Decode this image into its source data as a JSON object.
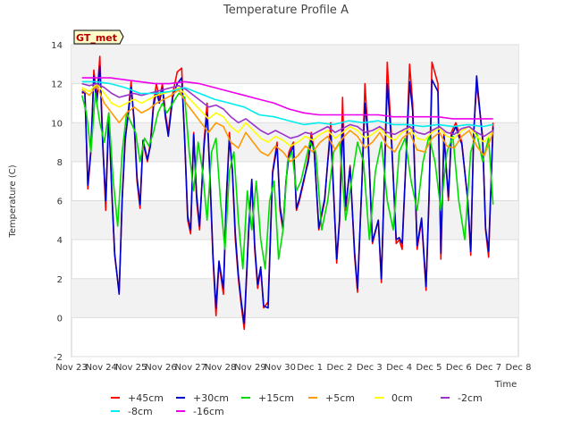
{
  "chart_data": {
    "type": "line",
    "title": "Temperature Profile A",
    "xlabel": "Time",
    "ylabel": "Temperature (C)",
    "badge": "GT_met",
    "xlim": [
      0,
      15
    ],
    "ylim": [
      -2,
      14
    ],
    "x_ticks": [
      {
        "x": 0,
        "label": "Nov 23"
      },
      {
        "x": 1,
        "label": "Nov 24"
      },
      {
        "x": 2,
        "label": "Nov 25"
      },
      {
        "x": 3,
        "label": "Nov 26"
      },
      {
        "x": 4,
        "label": "Nov 27"
      },
      {
        "x": 5,
        "label": "Nov 28"
      },
      {
        "x": 6,
        "label": "Nov 29"
      },
      {
        "x": 7,
        "label": "Nov 30"
      },
      {
        "x": 8,
        "label": "Dec 1"
      },
      {
        "x": 9,
        "label": "Dec 2"
      },
      {
        "x": 10,
        "label": "Dec 3"
      },
      {
        "x": 11,
        "label": "Dec 4"
      },
      {
        "x": 12,
        "label": "Dec 5"
      },
      {
        "x": 13,
        "label": "Dec 6"
      },
      {
        "x": 14,
        "label": "Dec 7"
      },
      {
        "x": 15,
        "label": "Dec 8"
      }
    ],
    "y_ticks": [
      -2,
      0,
      2,
      4,
      6,
      8,
      10,
      12,
      14
    ],
    "grid": true,
    "legend_position": "bottom",
    "series": [
      {
        "name": "+45cm",
        "color": "#ff0000",
        "x": [
          0.35,
          0.45,
          0.55,
          0.65,
          0.75,
          0.85,
          0.95,
          1.05,
          1.15,
          1.25,
          1.35,
          1.45,
          1.6,
          1.7,
          1.8,
          1.9,
          2.0,
          2.1,
          2.2,
          2.3,
          2.4,
          2.55,
          2.65,
          2.75,
          2.85,
          2.95,
          3.05,
          3.15,
          3.25,
          3.4,
          3.55,
          3.7,
          3.8,
          3.9,
          4.0,
          4.1,
          4.2,
          4.3,
          4.45,
          4.55,
          4.65,
          4.75,
          4.85,
          4.95,
          5.1,
          5.2,
          5.3,
          5.4,
          5.5,
          5.6,
          5.7,
          5.8,
          5.95,
          6.05,
          6.15,
          6.25,
          6.35,
          6.45,
          6.6,
          6.75,
          6.9,
          7.0,
          7.1,
          7.2,
          7.3,
          7.45,
          7.55,
          7.65,
          7.8,
          7.95,
          8.05,
          8.15,
          8.3,
          8.5,
          8.6,
          8.7,
          8.9,
          9.0,
          9.1,
          9.2,
          9.35,
          9.5,
          9.6,
          9.75,
          9.85,
          9.95,
          10.1,
          10.3,
          10.4,
          10.5,
          10.6,
          10.75,
          10.9,
          11.0,
          11.1,
          11.25,
          11.35,
          11.45,
          11.6,
          11.75,
          11.9,
          12.0,
          12.1,
          12.3,
          12.4,
          12.5,
          12.65,
          12.75,
          12.9,
          13.0,
          13.1,
          13.3,
          13.4,
          13.5,
          13.6,
          13.8,
          13.9,
          14.0,
          14.15
        ],
        "y": [
          11.5,
          11.6,
          6.6,
          8.5,
          12.7,
          11.2,
          13.4,
          9.0,
          5.5,
          10.5,
          6.5,
          3.2,
          1.3,
          6.0,
          9.0,
          10.5,
          12.1,
          10.0,
          7.0,
          5.6,
          9.0,
          8.0,
          9.0,
          11.0,
          12.0,
          11.2,
          12.0,
          10.5,
          9.5,
          11.5,
          12.6,
          12.8,
          9.0,
          5.0,
          4.3,
          9.5,
          6.0,
          4.5,
          9.0,
          11.0,
          7.0,
          3.0,
          0.1,
          2.8,
          1.2,
          6.0,
          9.5,
          7.5,
          4.0,
          2.0,
          0.6,
          -0.6,
          4.5,
          7.0,
          3.5,
          1.5,
          2.5,
          0.5,
          0.8,
          7.5,
          9.0,
          5.5,
          4.5,
          7.0,
          8.5,
          9.0,
          5.5,
          6.0,
          7.0,
          8.2,
          9.5,
          8.5,
          4.5,
          6.0,
          8.0,
          10.0,
          2.8,
          5.0,
          11.3,
          5.5,
          7.8,
          3.2,
          1.3,
          7.0,
          12.0,
          9.5,
          3.8,
          5.0,
          1.8,
          7.0,
          13.1,
          9.0,
          3.8,
          4.0,
          3.5,
          9.0,
          13.0,
          11.0,
          3.5,
          5.0,
          1.4,
          6.0,
          13.1,
          12.0,
          3.0,
          9.5,
          6.0,
          9.5,
          10.0,
          9.5,
          9.0,
          6.0,
          3.2,
          9.5,
          12.0,
          9.3,
          4.5,
          3.1,
          10.0
        ]
      },
      {
        "name": "+30cm",
        "color": "#0000cc",
        "x": [
          0.35,
          0.45,
          0.55,
          0.65,
          0.75,
          0.85,
          0.95,
          1.05,
          1.15,
          1.25,
          1.35,
          1.45,
          1.6,
          1.7,
          1.8,
          1.9,
          2.0,
          2.1,
          2.2,
          2.3,
          2.4,
          2.55,
          2.65,
          2.75,
          2.85,
          2.95,
          3.05,
          3.15,
          3.25,
          3.4,
          3.55,
          3.7,
          3.8,
          3.9,
          4.0,
          4.1,
          4.2,
          4.3,
          4.45,
          4.55,
          4.65,
          4.75,
          4.85,
          4.95,
          5.1,
          5.2,
          5.3,
          5.4,
          5.5,
          5.6,
          5.7,
          5.8,
          5.95,
          6.05,
          6.15,
          6.25,
          6.35,
          6.45,
          6.6,
          6.75,
          6.9,
          7.0,
          7.1,
          7.2,
          7.3,
          7.45,
          7.55,
          7.65,
          7.8,
          7.95,
          8.05,
          8.15,
          8.3,
          8.5,
          8.6,
          8.7,
          8.9,
          9.0,
          9.1,
          9.2,
          9.35,
          9.5,
          9.6,
          9.75,
          9.85,
          9.95,
          10.1,
          10.3,
          10.4,
          10.5,
          10.6,
          10.75,
          10.9,
          11.0,
          11.1,
          11.25,
          11.35,
          11.45,
          11.6,
          11.75,
          11.9,
          12.0,
          12.1,
          12.3,
          12.4,
          12.5,
          12.65,
          12.75,
          12.9,
          13.0,
          13.1,
          13.3,
          13.4,
          13.5,
          13.6,
          13.8,
          13.9,
          14.0,
          14.15
        ],
        "y": [
          11.6,
          11.5,
          6.8,
          8.6,
          12.4,
          11.0,
          12.9,
          8.8,
          6.0,
          10.4,
          6.6,
          3.3,
          1.2,
          6.1,
          9.2,
          10.3,
          11.8,
          10.2,
          7.2,
          5.8,
          9.1,
          8.1,
          8.8,
          10.8,
          11.6,
          11.0,
          11.8,
          10.3,
          9.3,
          11.3,
          12.0,
          12.3,
          9.1,
          5.2,
          4.5,
          9.4,
          6.3,
          4.7,
          8.8,
          10.5,
          7.2,
          3.2,
          0.5,
          2.9,
          1.5,
          6.3,
          9.2,
          7.6,
          4.3,
          2.2,
          0.8,
          -0.3,
          4.6,
          7.1,
          3.7,
          1.7,
          2.6,
          0.6,
          0.5,
          7.4,
          8.8,
          5.7,
          4.6,
          7.0,
          8.3,
          8.8,
          5.6,
          6.1,
          7.1,
          8.0,
          9.2,
          8.4,
          4.6,
          6.1,
          8.0,
          9.5,
          3.0,
          5.1,
          10.0,
          5.7,
          7.7,
          3.4,
          1.5,
          7.0,
          11.0,
          9.3,
          3.9,
          5.0,
          2.0,
          7.0,
          12.0,
          8.8,
          4.0,
          4.1,
          3.8,
          8.8,
          12.1,
          10.6,
          3.7,
          5.1,
          1.6,
          6.2,
          12.2,
          11.6,
          3.3,
          9.3,
          6.2,
          9.3,
          9.8,
          9.3,
          8.9,
          6.1,
          3.4,
          9.4,
          12.4,
          9.1,
          4.6,
          3.4,
          9.8
        ]
      },
      {
        "name": "+15cm",
        "color": "#00dd00",
        "x": [
          0.35,
          0.5,
          0.65,
          0.8,
          0.95,
          1.1,
          1.25,
          1.4,
          1.55,
          1.7,
          1.85,
          2.0,
          2.15,
          2.3,
          2.45,
          2.6,
          2.75,
          2.9,
          3.05,
          3.2,
          3.4,
          3.6,
          3.8,
          3.95,
          4.1,
          4.25,
          4.4,
          4.55,
          4.7,
          4.85,
          5.0,
          5.15,
          5.3,
          5.45,
          5.6,
          5.75,
          5.9,
          6.05,
          6.2,
          6.35,
          6.5,
          6.65,
          6.8,
          6.95,
          7.1,
          7.25,
          7.4,
          7.55,
          7.7,
          7.85,
          8.0,
          8.2,
          8.4,
          8.6,
          8.8,
          9.0,
          9.2,
          9.4,
          9.6,
          9.8,
          10.0,
          10.2,
          10.4,
          10.6,
          10.8,
          11.0,
          11.2,
          11.4,
          11.6,
          11.8,
          12.0,
          12.2,
          12.4,
          12.6,
          12.8,
          13.0,
          13.2,
          13.4,
          13.6,
          13.8,
          14.0,
          14.15
        ],
        "y": [
          11.4,
          10.5,
          8.5,
          11.5,
          10.0,
          9.0,
          10.5,
          7.0,
          4.7,
          8.5,
          10.5,
          10.0,
          9.5,
          8.0,
          9.2,
          8.8,
          9.5,
          10.5,
          11.0,
          10.5,
          11.0,
          11.5,
          11.3,
          8.5,
          6.5,
          9.0,
          7.5,
          5.0,
          8.5,
          9.2,
          6.0,
          3.5,
          7.5,
          8.5,
          5.0,
          2.5,
          6.5,
          4.5,
          7.0,
          4.0,
          2.5,
          6.0,
          7.0,
          3.0,
          4.5,
          8.0,
          8.5,
          6.5,
          7.0,
          8.0,
          9.0,
          8.5,
          4.5,
          6.0,
          8.5,
          9.0,
          5.0,
          7.0,
          9.0,
          8.0,
          4.0,
          7.5,
          9.0,
          6.0,
          4.5,
          8.5,
          9.2,
          7.0,
          5.5,
          8.0,
          9.3,
          8.0,
          5.5,
          8.5,
          9.3,
          6.0,
          4.0,
          8.5,
          9.5,
          8.0,
          9.2,
          5.8
        ]
      },
      {
        "name": "+5cm",
        "color": "#ff9900",
        "x": [
          0.35,
          0.6,
          0.85,
          1.1,
          1.35,
          1.6,
          1.85,
          2.1,
          2.35,
          2.6,
          2.85,
          3.1,
          3.35,
          3.6,
          3.85,
          4.1,
          4.35,
          4.6,
          4.85,
          5.1,
          5.35,
          5.6,
          5.85,
          6.1,
          6.35,
          6.6,
          6.85,
          7.1,
          7.35,
          7.6,
          7.85,
          8.1,
          8.35,
          8.6,
          8.85,
          9.1,
          9.35,
          9.6,
          9.85,
          10.1,
          10.35,
          10.6,
          10.85,
          11.1,
          11.35,
          11.6,
          11.85,
          12.1,
          12.35,
          12.6,
          12.85,
          13.1,
          13.35,
          13.6,
          13.85,
          14.15
        ],
        "y": [
          11.7,
          11.4,
          11.9,
          11.0,
          10.5,
          10.0,
          10.5,
          10.8,
          10.5,
          10.7,
          11.0,
          11.2,
          11.4,
          11.7,
          11.0,
          10.5,
          10.0,
          9.5,
          10.0,
          9.8,
          9.0,
          8.7,
          9.5,
          9.0,
          8.5,
          8.3,
          8.8,
          8.5,
          8.0,
          8.3,
          8.8,
          8.5,
          9.0,
          9.3,
          8.6,
          9.2,
          9.6,
          9.3,
          8.7,
          9.0,
          9.5,
          8.8,
          8.5,
          9.2,
          9.5,
          8.6,
          8.5,
          9.2,
          9.5,
          8.8,
          8.7,
          9.3,
          9.6,
          8.8,
          8.3,
          9.5
        ]
      },
      {
        "name": "0cm",
        "color": "#ffff00",
        "x": [
          0.35,
          0.6,
          0.85,
          1.1,
          1.35,
          1.6,
          1.85,
          2.1,
          2.35,
          2.6,
          2.85,
          3.1,
          3.35,
          3.6,
          3.85,
          4.1,
          4.35,
          4.6,
          4.85,
          5.1,
          5.35,
          5.6,
          5.85,
          6.1,
          6.35,
          6.6,
          6.85,
          7.1,
          7.35,
          7.6,
          7.85,
          8.1,
          8.35,
          8.6,
          8.85,
          9.1,
          9.35,
          9.6,
          9.85,
          10.1,
          10.35,
          10.6,
          10.85,
          11.1,
          11.35,
          11.6,
          11.85,
          12.1,
          12.35,
          12.6,
          12.85,
          13.1,
          13.35,
          13.6,
          13.85,
          14.15
        ],
        "y": [
          11.8,
          11.6,
          12.0,
          11.5,
          11.0,
          10.8,
          11.0,
          11.2,
          11.0,
          11.2,
          11.4,
          11.5,
          11.6,
          11.8,
          11.4,
          11.0,
          10.6,
          10.2,
          10.5,
          10.3,
          9.8,
          9.5,
          10.0,
          9.6,
          9.2,
          9.0,
          9.3,
          9.1,
          8.8,
          9.0,
          9.3,
          9.1,
          9.4,
          9.6,
          9.2,
          9.5,
          9.8,
          9.6,
          9.2,
          9.4,
          9.7,
          9.3,
          9.1,
          9.5,
          9.7,
          9.2,
          9.1,
          9.5,
          9.7,
          9.3,
          9.2,
          9.6,
          9.8,
          9.3,
          9.0,
          9.6
        ]
      },
      {
        "name": "-2cm",
        "color": "#9933cc",
        "x": [
          0.35,
          0.6,
          0.85,
          1.1,
          1.35,
          1.6,
          1.85,
          2.1,
          2.35,
          2.6,
          2.85,
          3.1,
          3.35,
          3.6,
          3.85,
          4.1,
          4.35,
          4.6,
          4.85,
          5.1,
          5.35,
          5.6,
          5.85,
          6.1,
          6.35,
          6.6,
          6.85,
          7.1,
          7.35,
          7.6,
          7.85,
          8.1,
          8.35,
          8.6,
          8.85,
          9.1,
          9.35,
          9.6,
          9.85,
          10.1,
          10.35,
          10.6,
          10.85,
          11.1,
          11.35,
          11.6,
          11.85,
          12.1,
          12.35,
          12.6,
          12.85,
          13.1,
          13.35,
          13.6,
          13.85,
          14.15
        ],
        "y": [
          12.0,
          11.9,
          12.0,
          11.8,
          11.5,
          11.3,
          11.4,
          11.5,
          11.4,
          11.5,
          11.6,
          11.7,
          11.8,
          11.9,
          11.7,
          11.4,
          11.1,
          10.8,
          10.9,
          10.7,
          10.3,
          10.0,
          10.2,
          9.9,
          9.6,
          9.4,
          9.6,
          9.4,
          9.2,
          9.3,
          9.5,
          9.4,
          9.6,
          9.8,
          9.5,
          9.7,
          9.9,
          9.8,
          9.5,
          9.6,
          9.8,
          9.5,
          9.4,
          9.6,
          9.8,
          9.5,
          9.4,
          9.6,
          9.8,
          9.5,
          9.4,
          9.7,
          9.8,
          9.5,
          9.3,
          9.6
        ]
      },
      {
        "name": "-8cm",
        "color": "#00eeee",
        "x": [
          0.35,
          0.8,
          1.3,
          1.8,
          2.3,
          2.8,
          3.3,
          3.8,
          4.3,
          4.8,
          5.3,
          5.8,
          6.3,
          6.8,
          7.3,
          7.8,
          8.3,
          8.8,
          9.3,
          9.8,
          10.3,
          10.8,
          11.3,
          11.8,
          12.3,
          12.8,
          13.3,
          13.8,
          14.15
        ],
        "y": [
          12.1,
          12.1,
          12.0,
          11.8,
          11.5,
          11.5,
          11.6,
          11.8,
          11.5,
          11.2,
          11.0,
          10.8,
          10.4,
          10.3,
          10.1,
          9.9,
          10.0,
          9.9,
          10.1,
          10.0,
          10.1,
          9.9,
          9.9,
          9.8,
          9.9,
          9.8,
          9.9,
          9.8,
          9.9
        ]
      },
      {
        "name": "-16cm",
        "color": "#ee00ee",
        "x": [
          0.35,
          0.8,
          1.3,
          1.8,
          2.3,
          2.8,
          3.3,
          3.8,
          4.3,
          4.8,
          5.3,
          5.8,
          6.3,
          6.8,
          7.3,
          7.8,
          8.3,
          8.8,
          9.3,
          9.8,
          10.3,
          10.8,
          11.3,
          11.8,
          12.3,
          12.8,
          13.3,
          13.8,
          14.15
        ],
        "y": [
          12.3,
          12.3,
          12.3,
          12.2,
          12.1,
          12.0,
          12.0,
          12.1,
          12.0,
          11.8,
          11.6,
          11.4,
          11.2,
          11.0,
          10.7,
          10.5,
          10.4,
          10.4,
          10.4,
          10.4,
          10.4,
          10.3,
          10.3,
          10.3,
          10.3,
          10.2,
          10.2,
          10.2,
          10.2
        ]
      }
    ]
  }
}
